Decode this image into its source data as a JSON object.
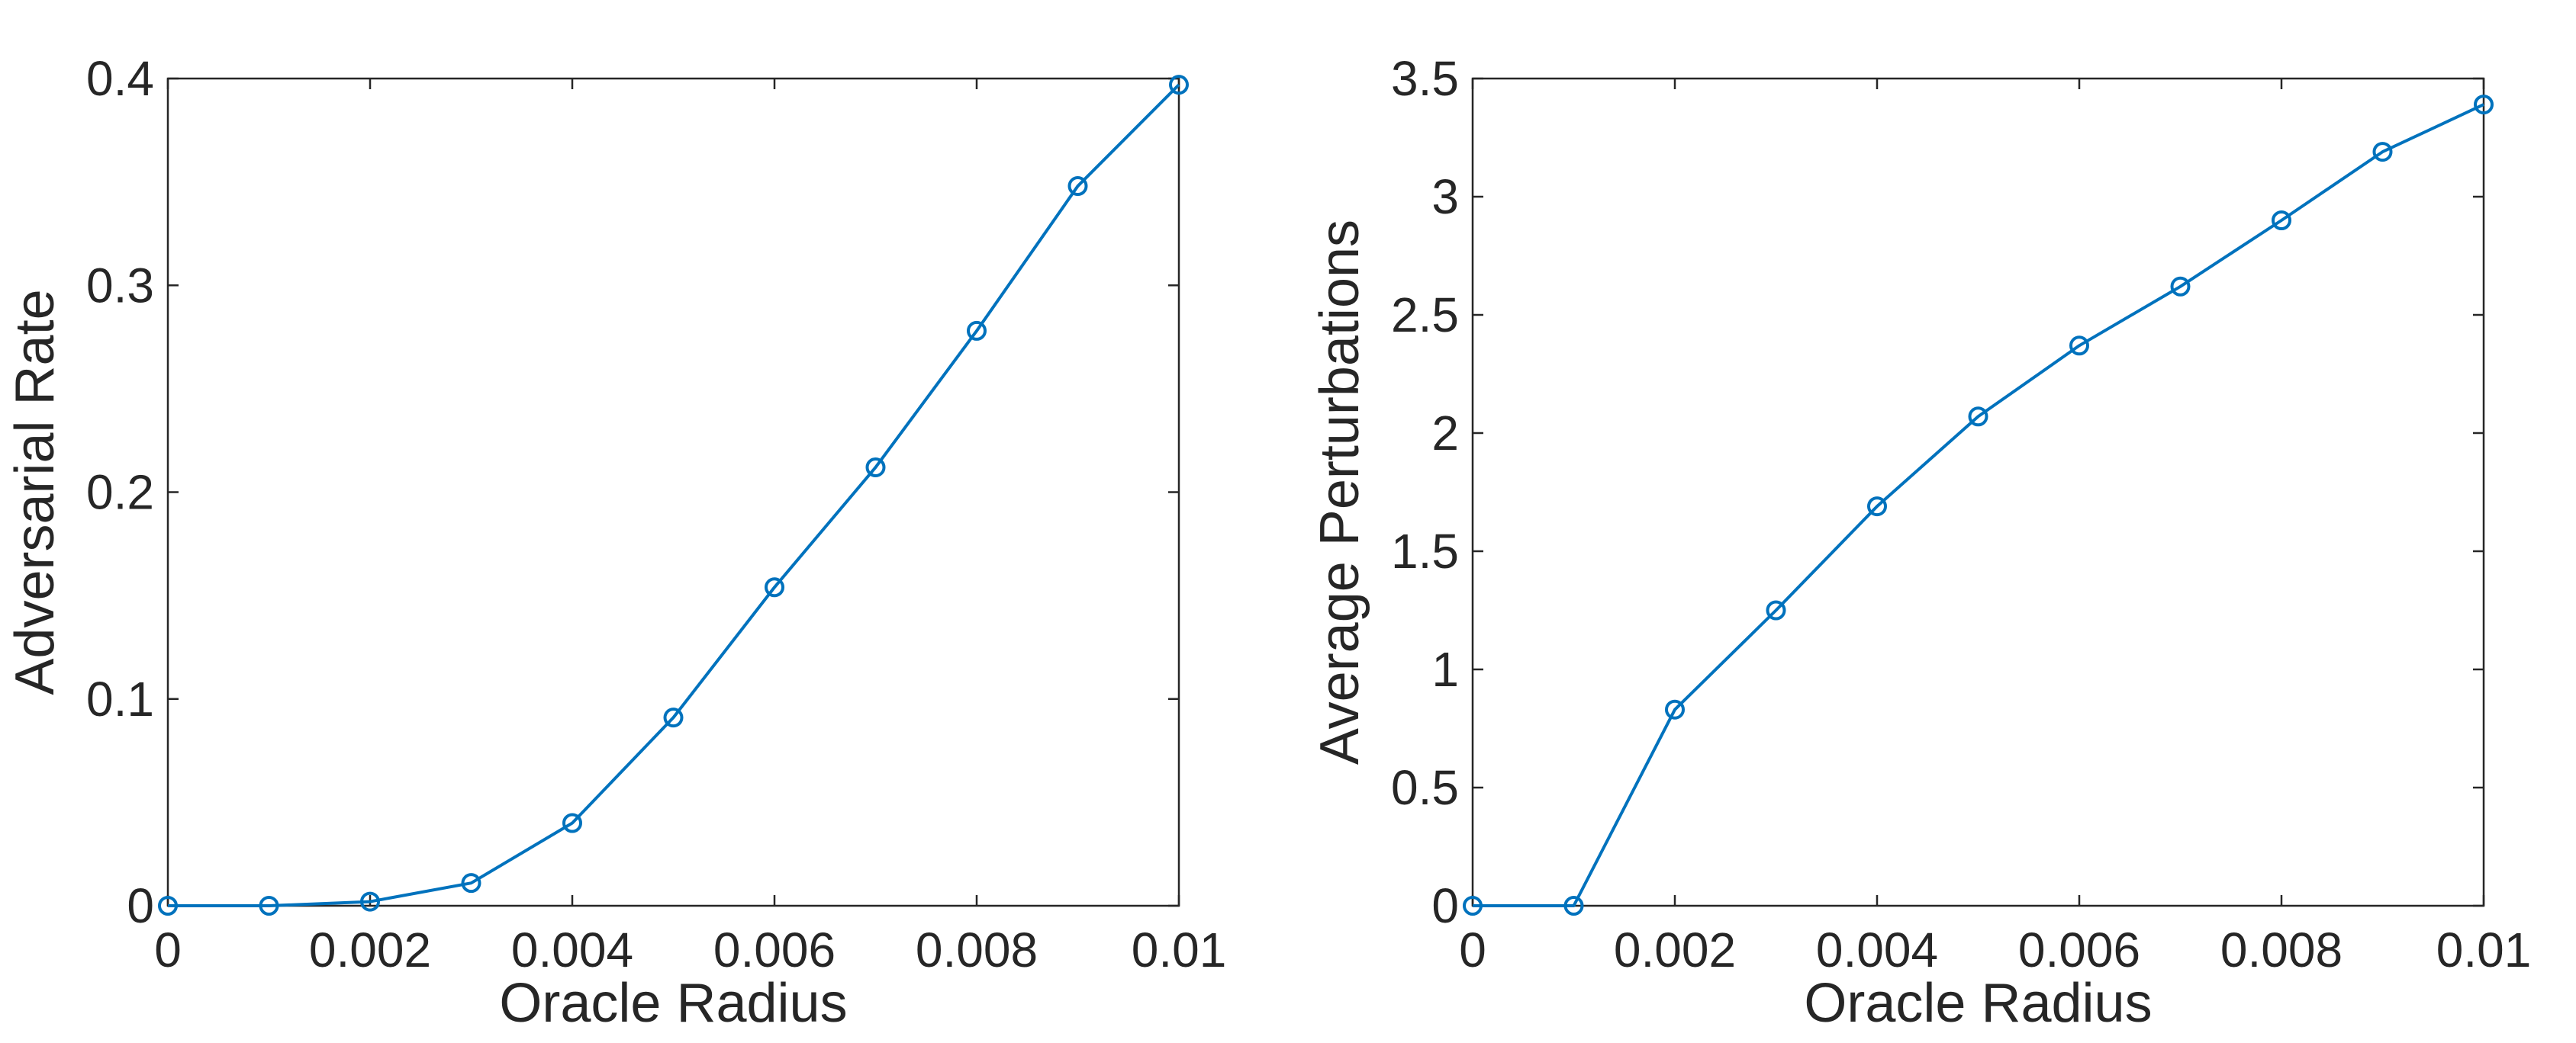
{
  "chart_data": [
    {
      "type": "line",
      "title": "",
      "xlabel": "Oracle Radius",
      "ylabel": "Adversarial Rate",
      "xlim": [
        0,
        0.01
      ],
      "ylim": [
        0,
        0.4
      ],
      "xticks": [
        0,
        0.002,
        0.004,
        0.006,
        0.008,
        0.01
      ],
      "xtick_labels": [
        "0",
        "0.002",
        "0.004",
        "0.006",
        "0.008",
        "0.01"
      ],
      "yticks": [
        0,
        0.1,
        0.2,
        0.3,
        0.4
      ],
      "ytick_labels": [
        "0",
        "0.1",
        "0.2",
        "0.3",
        "0.4"
      ],
      "grid": false,
      "marker": "circle",
      "color": "#0072BD",
      "x": [
        0,
        0.001,
        0.002,
        0.003,
        0.004,
        0.005,
        0.006,
        0.007,
        0.008,
        0.009,
        0.01
      ],
      "series": [
        {
          "values": [
            0,
            0,
            0.002,
            0.011,
            0.04,
            0.091,
            0.154,
            0.212,
            0.278,
            0.348,
            0.397
          ]
        }
      ]
    },
    {
      "type": "line",
      "title": "",
      "xlabel": "Oracle Radius",
      "ylabel": "Average Perturbations",
      "xlim": [
        0,
        0.01
      ],
      "ylim": [
        0,
        3.5
      ],
      "xticks": [
        0,
        0.002,
        0.004,
        0.006,
        0.008,
        0.01
      ],
      "xtick_labels": [
        "0",
        "0.002",
        "0.004",
        "0.006",
        "0.008",
        "0.01"
      ],
      "yticks": [
        0,
        0.5,
        1,
        1.5,
        2,
        2.5,
        3,
        3.5
      ],
      "ytick_labels": [
        "0",
        "0.5",
        "1",
        "1.5",
        "2",
        "2.5",
        "3",
        "3.5"
      ],
      "grid": false,
      "marker": "circle",
      "color": "#0072BD",
      "x": [
        0,
        0.001,
        0.002,
        0.003,
        0.004,
        0.005,
        0.006,
        0.007,
        0.008,
        0.009,
        0.01
      ],
      "series": [
        {
          "values": [
            0,
            0,
            0.83,
            1.25,
            1.69,
            2.07,
            2.37,
            2.62,
            2.9,
            3.19,
            3.39
          ]
        }
      ]
    }
  ]
}
